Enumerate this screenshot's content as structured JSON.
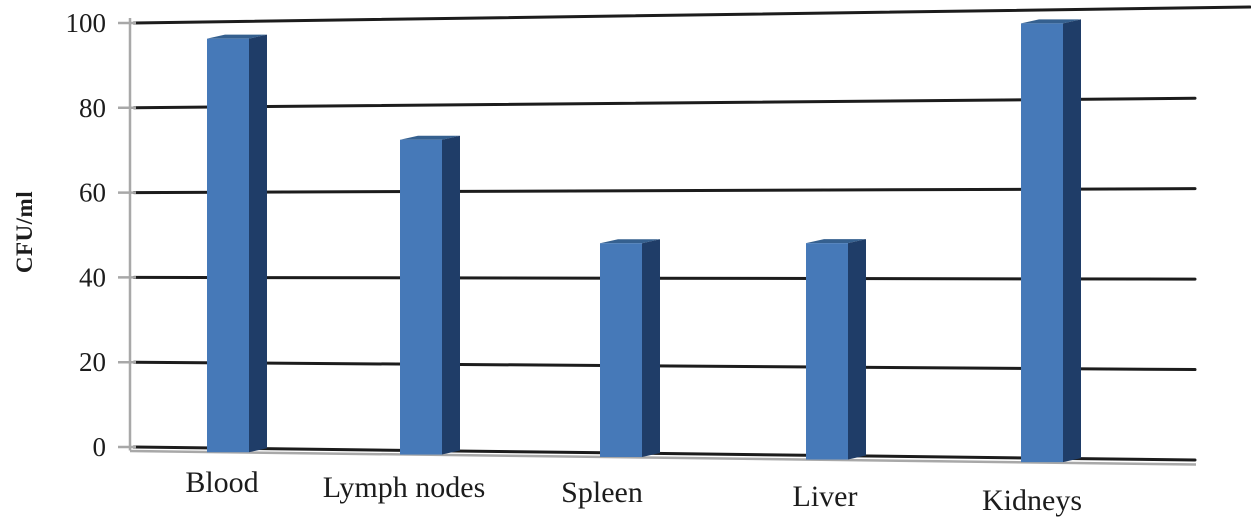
{
  "chart_data": {
    "type": "bar",
    "subtype": "3d-column",
    "title": "",
    "xlabel": "",
    "ylabel": "CFU/ml",
    "categories": [
      "Blood",
      "Lymph nodes",
      "Spleen",
      "Liver",
      "Kidneys"
    ],
    "values": [
      96,
      72,
      48,
      48,
      97
    ],
    "ylim": [
      0,
      100
    ],
    "yticks": [
      0,
      20,
      40,
      60,
      80,
      100
    ],
    "grid": true,
    "legend": false,
    "colors": {
      "bar_front": "#4679b8",
      "bar_side": "#1f3d68",
      "bar_top": "#35608f",
      "gridline": "#1c1c1c",
      "axis": "#a8a8a8",
      "text": "#1c1c1c",
      "background": "#ffffff"
    }
  }
}
